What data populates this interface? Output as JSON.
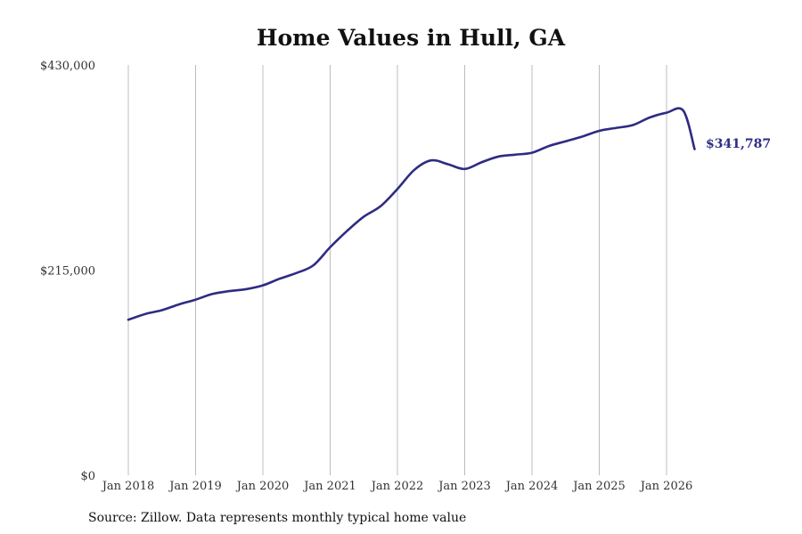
{
  "chart_data": {
    "type": "line",
    "title": "Home Values in Hull, GA",
    "xlabel": "",
    "ylabel": "",
    "ylim": [
      0,
      430000
    ],
    "xlim": [
      "2018-01",
      "2026-06"
    ],
    "grid": "vertical",
    "y_ticks": [
      {
        "value": 0,
        "label": "$0"
      },
      {
        "value": 215000,
        "label": "$215,000"
      },
      {
        "value": 430000,
        "label": "$430,000"
      }
    ],
    "x_ticks": [
      {
        "value": "2018-01",
        "label": "Jan 2018"
      },
      {
        "value": "2019-01",
        "label": "Jan 2019"
      },
      {
        "value": "2020-01",
        "label": "Jan 2020"
      },
      {
        "value": "2021-01",
        "label": "Jan 2021"
      },
      {
        "value": "2022-01",
        "label": "Jan 2022"
      },
      {
        "value": "2023-01",
        "label": "Jan 2023"
      },
      {
        "value": "2024-01",
        "label": "Jan 2024"
      },
      {
        "value": "2025-01",
        "label": "Jan 2025"
      },
      {
        "value": "2026-01",
        "label": "Jan 2026"
      }
    ],
    "series": [
      {
        "color": "#2e2c82",
        "points": [
          [
            "2018-01",
            163000
          ],
          [
            "2018-04",
            169000
          ],
          [
            "2018-07",
            173000
          ],
          [
            "2018-10",
            179000
          ],
          [
            "2019-01",
            184000
          ],
          [
            "2019-04",
            190000
          ],
          [
            "2019-07",
            193000
          ],
          [
            "2019-10",
            195000
          ],
          [
            "2020-01",
            199000
          ],
          [
            "2020-04",
            206000
          ],
          [
            "2020-07",
            212000
          ],
          [
            "2020-10",
            220000
          ],
          [
            "2021-01",
            239000
          ],
          [
            "2021-04",
            256000
          ],
          [
            "2021-07",
            271000
          ],
          [
            "2021-10",
            282000
          ],
          [
            "2022-01",
            300000
          ],
          [
            "2022-04",
            320000
          ],
          [
            "2022-07",
            330000
          ],
          [
            "2022-10",
            326000
          ],
          [
            "2023-01",
            321000
          ],
          [
            "2023-04",
            328000
          ],
          [
            "2023-07",
            334000
          ],
          [
            "2023-10",
            336000
          ],
          [
            "2024-01",
            338000
          ],
          [
            "2024-04",
            345000
          ],
          [
            "2024-07",
            350000
          ],
          [
            "2024-10",
            355000
          ],
          [
            "2025-01",
            361000
          ],
          [
            "2025-04",
            364000
          ],
          [
            "2025-07",
            367000
          ],
          [
            "2025-10",
            375000
          ],
          [
            "2026-01",
            380000
          ],
          [
            "2026-04",
            382000
          ],
          [
            "2026-06",
            341787
          ]
        ]
      }
    ],
    "annotations": [
      {
        "text": "$341,787",
        "at": "last-point",
        "color": "#2e2c82"
      }
    ]
  },
  "footer": {
    "source": "Source: Zillow. Data represents monthly typical home value"
  }
}
